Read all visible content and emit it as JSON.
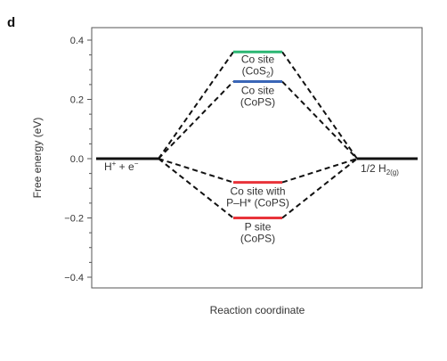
{
  "chart_data": {
    "type": "line",
    "panel_label": "d",
    "title": "",
    "xlabel": "Reaction coordinate",
    "ylabel": "Free energy (eV)",
    "ylim": [
      -0.45,
      0.43
    ],
    "yticks": [
      {
        "value": 0.4,
        "label": "0.4"
      },
      {
        "value": 0.2,
        "label": "0.2"
      },
      {
        "value": 0.0,
        "label": "0.0"
      },
      {
        "value": -0.2,
        "label": "−0.2"
      },
      {
        "value": -0.4,
        "label": "−0.4"
      }
    ],
    "yminor_step": 0.05,
    "grid": false,
    "states": [
      {
        "name": "initial",
        "value": 0.0,
        "label_main": "H",
        "label_sup1": "+",
        "label_mid": " + e",
        "label_sup2": "−"
      },
      {
        "name": "final",
        "value": 0.0,
        "label_main": "1/2 H",
        "label_sub": "2(g)"
      }
    ],
    "series": [
      {
        "value": 0.36,
        "color": "#2bb673",
        "label_lines": [
          "Co site",
          "(CoS",
          "2",
          ")"
        ]
      },
      {
        "value": 0.26,
        "color": "#3a66b7",
        "label_lines": [
          "Co site",
          "(CoPS)"
        ]
      },
      {
        "value": -0.08,
        "color": "#e8333a",
        "label_lines": [
          "Co site with",
          "P–H* (CoPS)"
        ]
      },
      {
        "value": -0.2,
        "color": "#e8333a",
        "label_lines": [
          "P site",
          "(CoPS)"
        ]
      }
    ]
  }
}
